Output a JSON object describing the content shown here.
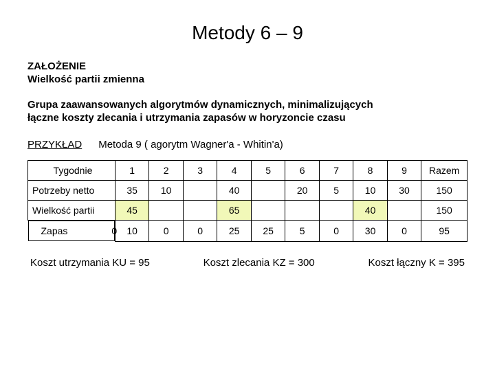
{
  "title": "Metody  6 – 9",
  "header1": "ZAŁOŻENIE",
  "header2": "Wielkość partii zmienna",
  "desc1": "Grupa zaawansowanych algorytmów dynamicznych, minimalizujących",
  "desc2": " łączne koszty zlecania i utrzymania zapasów w horyzoncie czasu",
  "example_label": "PRZYKŁAD",
  "example_method": "Metoda 9 ( agorytm Wagner'a - Whitin'a)",
  "table": {
    "header_row_label": "Tygodnie",
    "week_cols": [
      "1",
      "2",
      "3",
      "4",
      "5",
      "6",
      "7",
      "8",
      "9"
    ],
    "total_col": "Razem",
    "rows": [
      {
        "label": "Potrzeby netto",
        "cells": [
          "35",
          "10",
          "",
          "40",
          "",
          "20",
          "5",
          "10",
          "30",
          "150"
        ],
        "hl": []
      },
      {
        "label": "Wielkość partii",
        "cells": [
          "45",
          "",
          "",
          "65",
          "",
          "",
          "",
          "40",
          "",
          "150"
        ],
        "hl": [
          0,
          3,
          7
        ]
      },
      {
        "label": "Zapas",
        "zapas0": "0",
        "cells": [
          "10",
          "0",
          "0",
          "25",
          "25",
          "5",
          "0",
          "30",
          "0",
          "95"
        ],
        "hl": []
      }
    ],
    "hl_color": "#f1f8b8"
  },
  "summary": [
    "Koszt utrzymania  KU = 95",
    "Koszt zlecania  KZ = 300",
    "Koszt łączny  K = 395"
  ]
}
